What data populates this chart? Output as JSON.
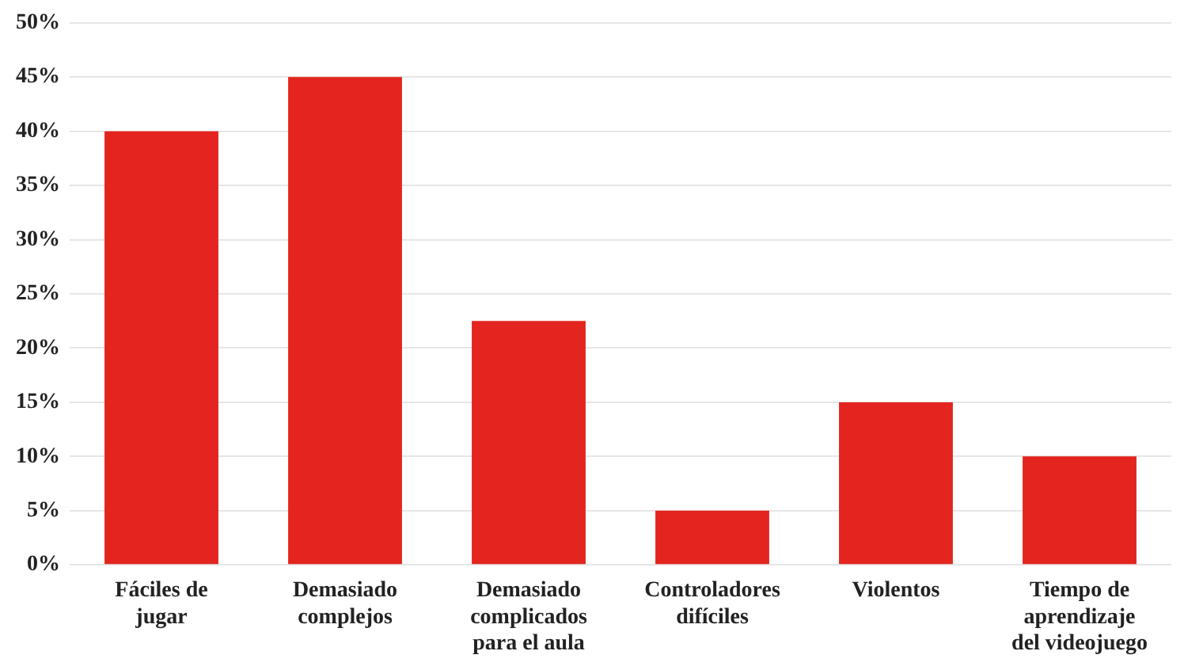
{
  "chart_data": {
    "type": "bar",
    "categories": [
      "Fáciles de jugar",
      "Demasiado complejos",
      "Demasiado complicados para el aula",
      "Controladores difíciles",
      "Violentos",
      "Tiempo de aprendizaje del videojuego"
    ],
    "values": [
      40,
      45,
      22.5,
      5,
      15,
      10
    ],
    "color": "#e3241f",
    "ylim": [
      0,
      50
    ],
    "yticks": [
      {
        "value": 0,
        "label": "0%"
      },
      {
        "value": 5,
        "label": "5%"
      },
      {
        "value": 10,
        "label": "10%"
      },
      {
        "value": 15,
        "label": "15%"
      },
      {
        "value": 20,
        "label": "20%"
      },
      {
        "value": 25,
        "label": "25%"
      },
      {
        "value": 30,
        "label": "30%"
      },
      {
        "value": 35,
        "label": "35%"
      },
      {
        "value": 40,
        "label": "40%"
      },
      {
        "value": 45,
        "label": "45%"
      },
      {
        "value": 50,
        "label": "50%"
      }
    ],
    "grid": "y",
    "legend": false
  }
}
